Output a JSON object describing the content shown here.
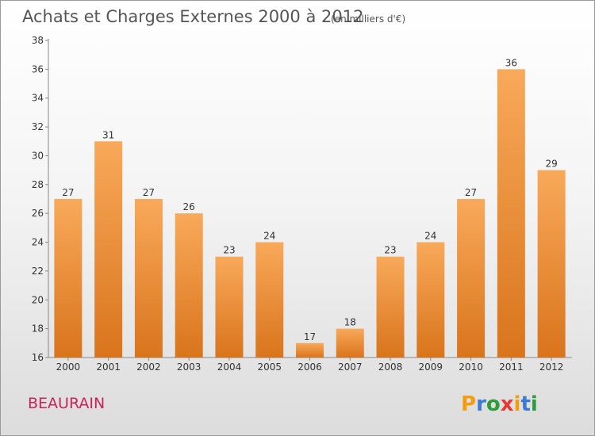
{
  "title": "Achats et Charges Externes 2000 à 2012",
  "subtitle": "(en milliers d'€)",
  "place": "BEAURAIN",
  "logo_text": "Proxiti",
  "colors": {
    "bar_light": "#f8a95a",
    "bar_dark": "#d9741c",
    "place_color": "#c8235a",
    "logo_letters": [
      "#f39c12",
      "#3a7bd5",
      "#2e9c3a",
      "#e53935",
      "#f39c12",
      "#3a7bd5",
      "#2e9c3a"
    ]
  },
  "chart_data": {
    "type": "bar",
    "title": "Achats et Charges Externes 2000 à 2012",
    "subtitle": "(en milliers d'€)",
    "categories": [
      "2000",
      "2001",
      "2002",
      "2003",
      "2004",
      "2005",
      "2006",
      "2007",
      "2008",
      "2009",
      "2010",
      "2011",
      "2012"
    ],
    "values": [
      27,
      31,
      27,
      26,
      23,
      24,
      17,
      18,
      23,
      24,
      27,
      36,
      29
    ],
    "ylim": [
      16,
      38
    ],
    "yticks": [
      16,
      18,
      20,
      22,
      24,
      26,
      28,
      30,
      32,
      34,
      36,
      38
    ],
    "grid": false,
    "legend": "none"
  }
}
